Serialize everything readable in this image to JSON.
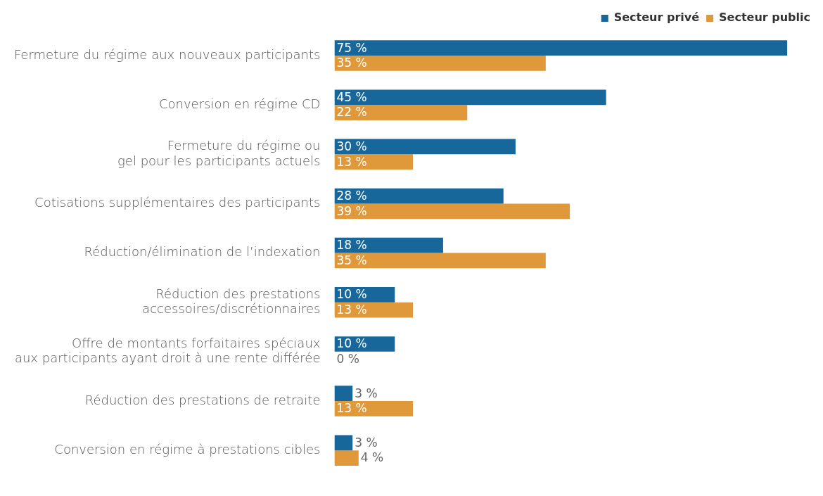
{
  "chart_data": {
    "type": "bar",
    "orientation": "horizontal",
    "legend": "top right",
    "categories": [
      "Fermeture du régime aux nouveaux participants",
      "Conversion en régime CD",
      "Fermeture du régime ou\ngel pour les participants actuels",
      "Cotisations supplémentaires des participants",
      "Réduction/élimination de l’indexation",
      "Réduction des prestations\naccessoires/discrétionnaires",
      "Offre de montants forfaitaires spéciaux\naux participants ayant droit à une rente différée",
      "Réduction des prestations de retraite",
      "Conversion en régime à prestations cibles"
    ],
    "series": [
      {
        "name": "Secteur privé",
        "color": "#18679a",
        "values": [
          75,
          45,
          30,
          28,
          18,
          10,
          10,
          3,
          3
        ],
        "value_labels": [
          "75 %",
          "45 %",
          "30 %",
          "28 %",
          "18 %",
          "10 %",
          "10 %",
          "3 %",
          "3 %"
        ]
      },
      {
        "name": "Secteur public",
        "color": "#e0993a",
        "values": [
          35,
          22,
          13,
          39,
          35,
          13,
          0,
          13,
          4
        ],
        "value_labels": [
          "35 %",
          "22 %",
          "13 %",
          "39 %",
          "35 %",
          "13 %",
          "0 %",
          "13 %",
          "4 %"
        ]
      }
    ]
  }
}
